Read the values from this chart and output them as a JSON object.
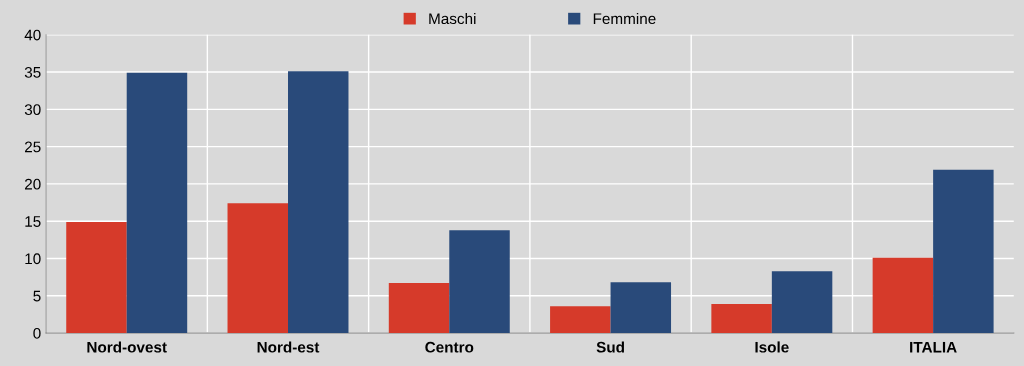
{
  "chart_data": {
    "type": "bar",
    "categories": [
      "Nord-ovest",
      "Nord-est",
      "Centro",
      "Sud",
      "Isole",
      "ITALIA"
    ],
    "series": [
      {
        "name": "Maschi",
        "color": "#d63a2a",
        "values": [
          14.9,
          17.4,
          6.7,
          3.6,
          3.9,
          10.1
        ]
      },
      {
        "name": "Femmine",
        "color": "#294a7a",
        "values": [
          34.9,
          35.1,
          13.8,
          6.8,
          8.3,
          21.9
        ]
      }
    ],
    "ylim": [
      0,
      40
    ],
    "yticks": [
      0,
      5,
      10,
      15,
      20,
      25,
      30,
      35,
      40
    ],
    "grid": true,
    "legend": "top"
  }
}
